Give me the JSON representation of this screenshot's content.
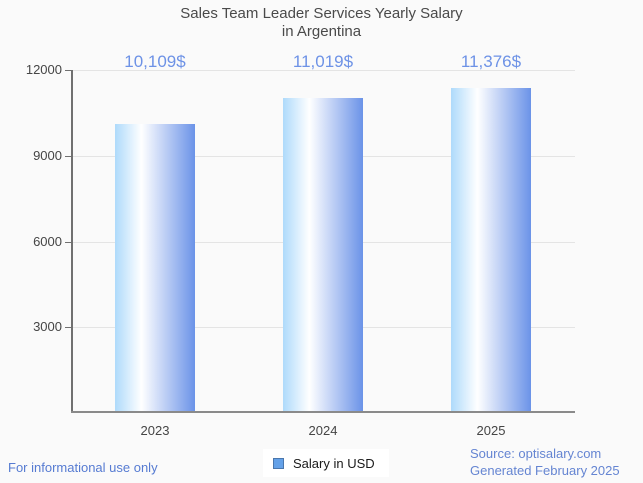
{
  "title": {
    "line1": "Sales Team Leader Services Yearly Salary",
    "line2": "in Argentina"
  },
  "chart_data": {
    "type": "bar",
    "categories": [
      "2023",
      "2024",
      "2025"
    ],
    "values": [
      10109,
      11019,
      11376
    ],
    "value_labels": [
      "10,109$",
      "11,019$",
      "11,376$"
    ],
    "series": [
      {
        "name": "Salary in USD",
        "values": [
          10109,
          11019,
          11376
        ]
      }
    ],
    "title": "Sales Team Leader Services Yearly Salary in Argentina",
    "xlabel": "",
    "ylabel": "",
    "ylim": [
      0,
      12000
    ],
    "yticks": [
      3000,
      6000,
      9000,
      12000
    ],
    "grid": true,
    "legend_position": "bottom"
  },
  "legend": {
    "label": "Salary in USD",
    "swatch_color": "#64a1e8"
  },
  "footer": {
    "left": "For informational use only",
    "source_line1": "Source: optisalary.com",
    "source_line2": "Generated February 2025"
  },
  "colors": {
    "background": "#fafafa",
    "title_text": "#4a4a4a",
    "axis_text": "#454545",
    "gridline": "#e4e4e4",
    "value_label": "#6d92e6",
    "footer_left_text": "#567bd2",
    "source_text": "#6585d2",
    "bar_gradient": [
      "#aedafb",
      "#ffffff",
      "#6b93e8"
    ]
  }
}
